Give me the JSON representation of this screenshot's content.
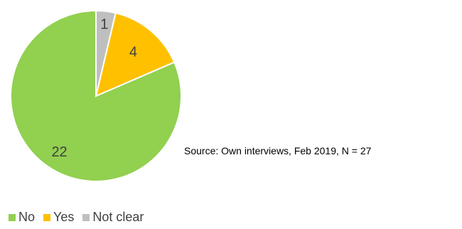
{
  "chart_data": {
    "type": "pie",
    "title": "",
    "slices": [
      {
        "label": "No",
        "value": 22,
        "color": "#92D050"
      },
      {
        "label": "Yes",
        "value": 4,
        "color": "#FFC000"
      },
      {
        "label": "Not clear",
        "value": 1,
        "color": "#BFBFBF"
      }
    ],
    "data_labels": [
      "22",
      "4",
      "1"
    ],
    "legend_position": "bottom-left",
    "start_angle_deg": 0,
    "direction": "counterclockwise"
  },
  "source_note": "Source: Own interviews, Feb 2019, N = 27"
}
